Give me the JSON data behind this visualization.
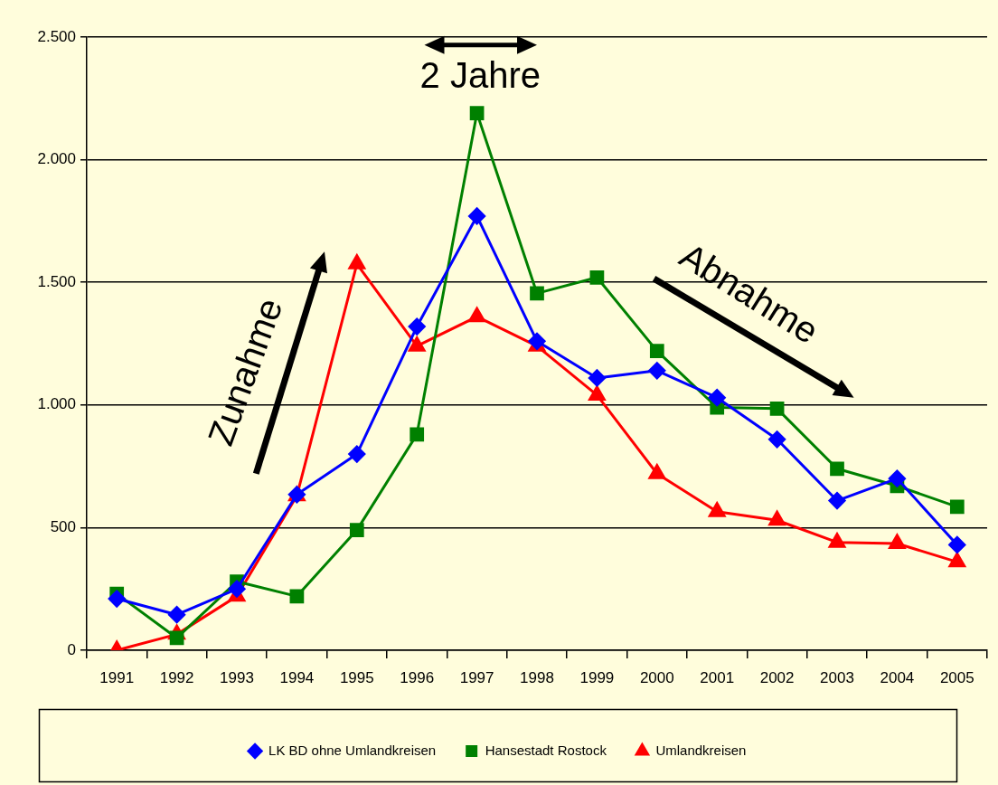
{
  "chart_data": {
    "type": "line",
    "categories": [
      "1991",
      "1992",
      "1993",
      "1994",
      "1995",
      "1996",
      "1997",
      "1998",
      "1999",
      "2000",
      "2001",
      "2002",
      "2003",
      "2004",
      "2005"
    ],
    "series": [
      {
        "name": "LK BD ohne Umlandkreisen",
        "color": "#0000ff",
        "marker": "diamond",
        "values": [
          210,
          145,
          250,
          635,
          800,
          1320,
          1770,
          1260,
          1110,
          1140,
          1030,
          860,
          610,
          700,
          430
        ]
      },
      {
        "name": "Hansestadt Rostock",
        "color": "#008000",
        "marker": "square",
        "values": [
          230,
          50,
          280,
          220,
          490,
          880,
          2190,
          1455,
          1520,
          1220,
          990,
          985,
          740,
          670,
          585
        ]
      },
      {
        "name": "Umlandkreisen",
        "color": "#ff0000",
        "marker": "triangle",
        "values": [
          0,
          65,
          220,
          630,
          1575,
          1240,
          1360,
          1240,
          1040,
          720,
          565,
          530,
          440,
          435,
          360
        ]
      }
    ],
    "ylim": [
      0,
      2500
    ],
    "yticks": [
      0,
      500,
      {
        "value": 1000,
        "label": "1.000"
      },
      {
        "value": 1500,
        "label": "1.500"
      },
      {
        "value": 2000,
        "label": "2.000"
      },
      {
        "value": 2500,
        "label": "2.500"
      }
    ],
    "grid": "y",
    "legend": "bottom",
    "annotations": [
      "2 Jahre",
      "Zunahme",
      "Abnahme"
    ]
  }
}
